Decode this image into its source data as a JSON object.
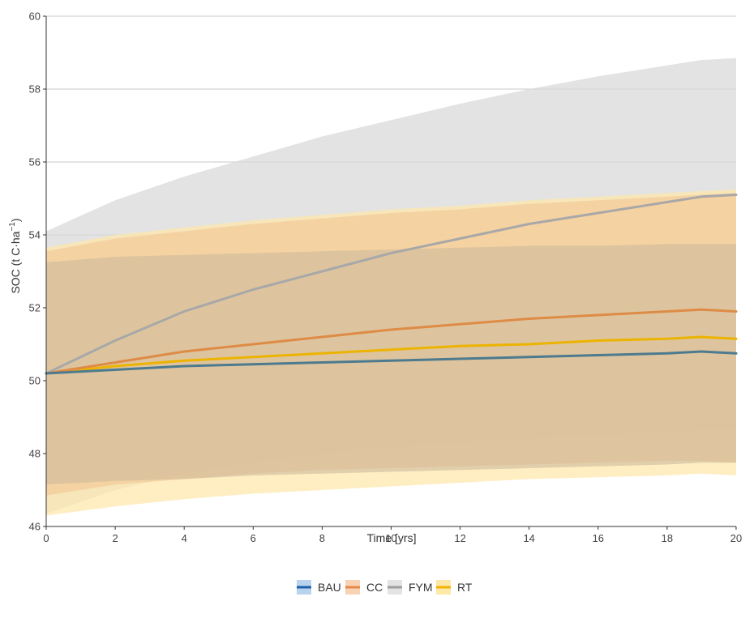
{
  "chart_data": {
    "type": "line",
    "xlabel": "Time [yrs]",
    "ylabel": {
      "text": "SOC (t C·ha",
      "sup": "−1",
      "close": ")"
    },
    "xlim": [
      0,
      20
    ],
    "ylim": [
      46,
      60
    ],
    "xticks": [
      "0",
      "2",
      "4",
      "6",
      "8",
      "10",
      "12",
      "14",
      "16",
      "18",
      "20"
    ],
    "yticks": [
      "46",
      "48",
      "50",
      "52",
      "54",
      "56",
      "58",
      "60"
    ],
    "grid": "horizontal",
    "legend_position": "bottom",
    "x": [
      0,
      2,
      4,
      6,
      8,
      10,
      12,
      14,
      16,
      18,
      19,
      20
    ],
    "series": [
      {
        "name": "FYM",
        "color": "#a8a8a8",
        "band_color": "#d9d9d9",
        "values": [
          50.2,
          51.1,
          51.9,
          52.5,
          53.0,
          53.5,
          53.9,
          54.3,
          54.6,
          54.9,
          55.05,
          55.1
        ],
        "upper": [
          54.1,
          54.95,
          55.6,
          56.15,
          56.7,
          57.15,
          57.6,
          58.0,
          58.35,
          58.65,
          58.8,
          58.85
        ],
        "lower": [
          46.35,
          47.0,
          47.45,
          47.75,
          48.0,
          48.15,
          48.3,
          48.4,
          48.5,
          48.6,
          48.65,
          48.65
        ]
      },
      {
        "name": "RT",
        "color": "#ecb300",
        "band_color": "#ffe7a8",
        "values": [
          50.2,
          50.4,
          50.55,
          50.65,
          50.75,
          50.85,
          50.95,
          51.0,
          51.1,
          51.15,
          51.2,
          51.15
        ],
        "upper": [
          53.65,
          54.0,
          54.2,
          54.4,
          54.55,
          54.7,
          54.8,
          54.95,
          55.05,
          55.15,
          55.2,
          55.25
        ],
        "lower": [
          46.3,
          46.55,
          46.75,
          46.9,
          47.0,
          47.1,
          47.2,
          47.3,
          47.35,
          47.4,
          47.45,
          47.4
        ]
      },
      {
        "name": "CC",
        "color": "#de8b46",
        "band_color": "#f3c491",
        "values": [
          50.2,
          50.5,
          50.8,
          51.0,
          51.2,
          51.4,
          51.55,
          51.7,
          51.8,
          51.9,
          51.95,
          51.9
        ],
        "upper": [
          53.55,
          53.9,
          54.1,
          54.3,
          54.45,
          54.6,
          54.7,
          54.85,
          54.95,
          55.05,
          55.1,
          55.15
        ],
        "lower": [
          46.85,
          47.15,
          47.3,
          47.45,
          47.55,
          47.6,
          47.65,
          47.7,
          47.75,
          47.8,
          47.8,
          47.75
        ]
      },
      {
        "name": "BAU",
        "color": "#4d7a8e",
        "band_color": "#cdbb9c",
        "values": [
          50.2,
          50.3,
          50.4,
          50.45,
          50.5,
          50.55,
          50.6,
          50.65,
          50.7,
          50.75,
          50.8,
          50.75
        ],
        "upper": [
          53.25,
          53.4,
          53.45,
          53.5,
          53.55,
          53.6,
          53.65,
          53.7,
          53.7,
          53.75,
          53.75,
          53.75
        ],
        "lower": [
          47.15,
          47.25,
          47.3,
          47.4,
          47.45,
          47.5,
          47.55,
          47.6,
          47.65,
          47.7,
          47.75,
          47.75
        ]
      }
    ],
    "legend": [
      {
        "name": "BAU",
        "line": "#1f5fa8",
        "box": "#b9d3ee"
      },
      {
        "name": "CC",
        "line": "#e5894a",
        "box": "#f8d3b3"
      },
      {
        "name": "FYM",
        "line": "#9e9e9e",
        "box": "#e3e3e3"
      },
      {
        "name": "RT",
        "line": "#f0b400",
        "box": "#fde8a8"
      }
    ]
  }
}
